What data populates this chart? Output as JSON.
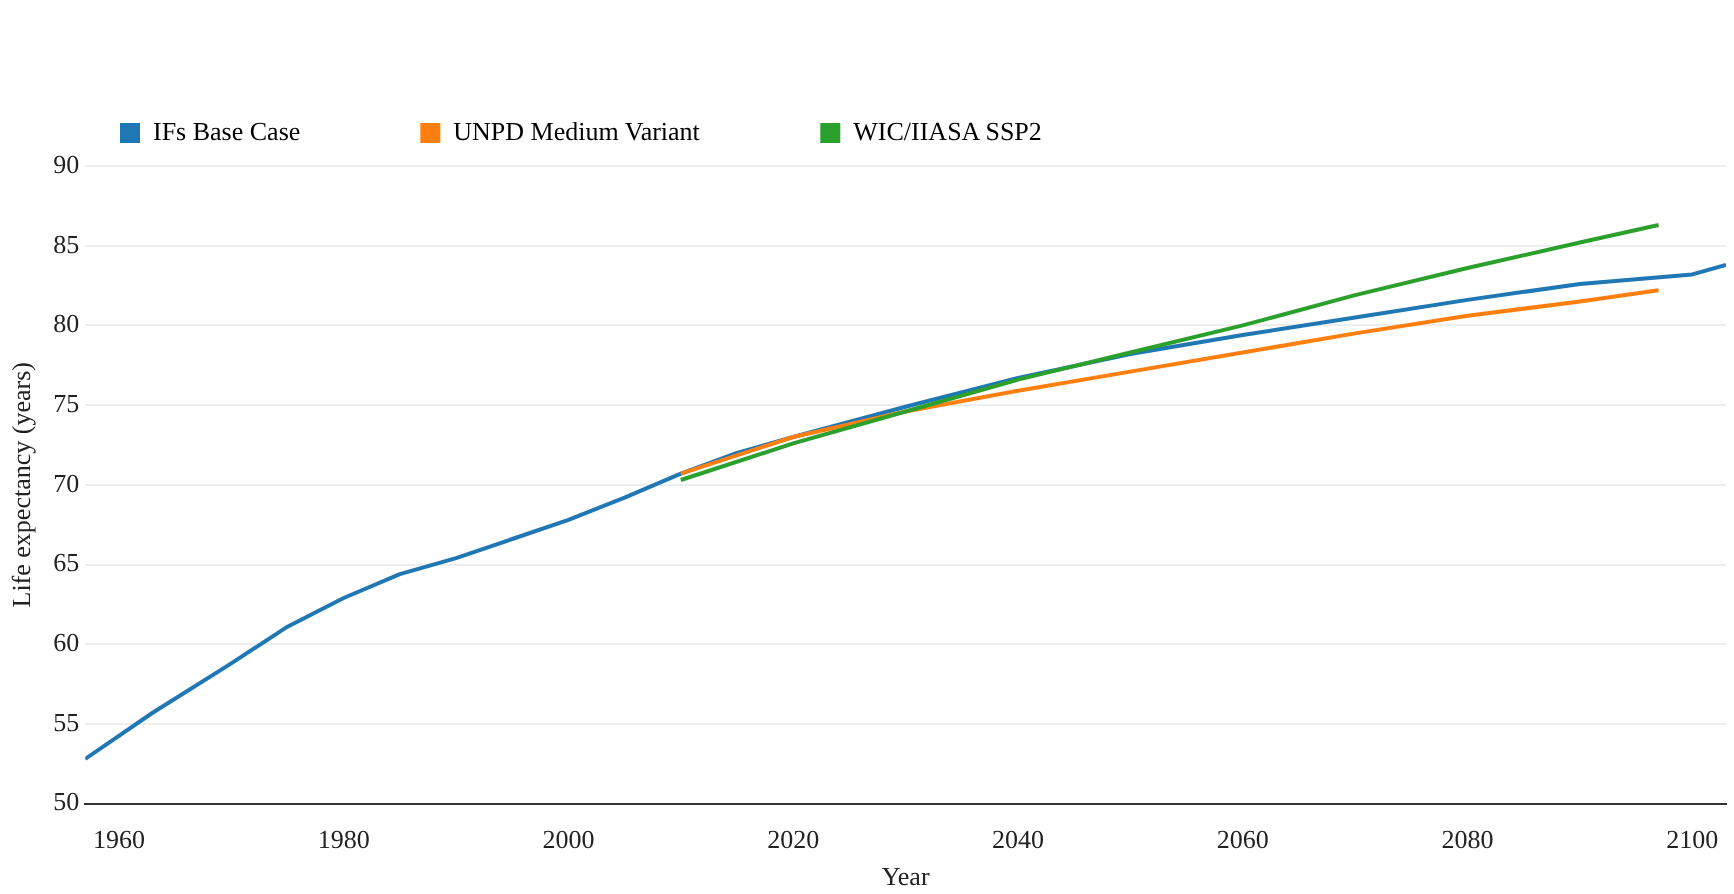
{
  "chart_data": {
    "type": "line",
    "xlabel": "Year",
    "ylabel": "Life expectancy (years)",
    "xlim": [
      1957,
      2103
    ],
    "xticks": [
      1960,
      1980,
      2000,
      2020,
      2040,
      2060,
      2080,
      2100
    ],
    "ylim": [
      50,
      90
    ],
    "yticks": [
      50,
      55,
      60,
      65,
      70,
      75,
      80,
      85,
      90
    ],
    "grid": "y",
    "legend": "top left",
    "marker": "none",
    "line_style": "solid",
    "series": [
      {
        "name": "IFs Base Case",
        "color": "#1f77b4",
        "x": [
          1957,
          1963,
          1970,
          1975,
          1980,
          1985,
          1990,
          1995,
          2000,
          2005,
          2010,
          2015,
          2020,
          2030,
          2040,
          2050,
          2060,
          2070,
          2080,
          2090,
          2100,
          2103
        ],
        "values": [
          52.8,
          55.7,
          58.8,
          61.1,
          62.9,
          64.4,
          65.4,
          66.6,
          67.8,
          69.2,
          70.7,
          72.0,
          73.0,
          74.9,
          76.7,
          78.2,
          79.4,
          80.5,
          81.6,
          82.6,
          83.2,
          83.8
        ]
      },
      {
        "name": "UNPD Medium Variant",
        "color": "#ff7f0e",
        "x": [
          2010,
          2020,
          2030,
          2040,
          2050,
          2060,
          2070,
          2080,
          2090,
          2097
        ],
        "values": [
          70.7,
          73.0,
          74.6,
          75.9,
          77.1,
          78.3,
          79.5,
          80.6,
          81.5,
          82.2
        ]
      },
      {
        "name": "WIC/IIASA SSP2",
        "color": "#2ca02c",
        "x": [
          2010,
          2020,
          2030,
          2040,
          2050,
          2060,
          2070,
          2080,
          2090,
          2097
        ],
        "values": [
          70.3,
          72.6,
          74.6,
          76.6,
          78.3,
          80.0,
          81.9,
          83.6,
          85.2,
          86.3
        ]
      }
    ]
  }
}
